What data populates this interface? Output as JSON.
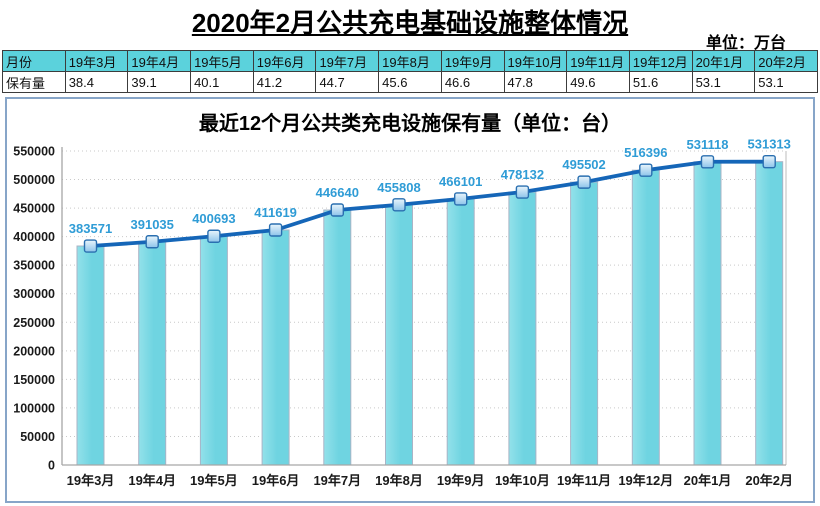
{
  "page": {
    "title": "2020年2月公共充电基础设施整体情况",
    "unit_label": "单位：万台"
  },
  "table": {
    "row_headers": [
      "月份",
      "保有量"
    ],
    "months": [
      "19年3月",
      "19年4月",
      "19年5月",
      "19年6月",
      "19年7月",
      "19年8月",
      "19年9月",
      "19年10月",
      "19年11月",
      "19年12月",
      "20年1月",
      "20年2月"
    ],
    "values": [
      "38.4",
      "39.1",
      "40.1",
      "41.2",
      "44.7",
      "45.6",
      "46.6",
      "47.8",
      "49.6",
      "51.6",
      "53.1",
      "53.1"
    ]
  },
  "chart_data": {
    "type": "bar",
    "line_overlay": true,
    "title": "最近12个月公共类充电设施保有量（单位：台）",
    "categories": [
      "19年3月",
      "19年4月",
      "19年5月",
      "19年6月",
      "19年7月",
      "19年8月",
      "19年9月",
      "19年10月",
      "19年11月",
      "19年12月",
      "20年1月",
      "20年2月"
    ],
    "values": [
      383571,
      391035,
      400693,
      411619,
      446640,
      455808,
      466101,
      478132,
      495502,
      516396,
      531118,
      531313
    ],
    "data_labels": [
      "383571",
      "391035",
      "400693",
      "411619",
      "446640",
      "455808",
      "466101",
      "478132",
      "495502",
      "516396",
      "531118",
      "531313"
    ],
    "xlabel": "",
    "ylabel": "",
    "ylim": [
      0,
      550000
    ],
    "ytick_step": 50000,
    "yticks": [
      0,
      50000,
      100000,
      150000,
      200000,
      250000,
      300000,
      350000,
      400000,
      450000,
      500000,
      550000
    ],
    "grid": true,
    "legend_position": "none",
    "colors": {
      "bar_fill": "#6fd4e1",
      "bar_fill_light": "#93e1ea",
      "bar_edge": "#a9b4c6",
      "line": "#1566b8",
      "marker_fill_top": "#eaf5fc",
      "marker_fill_bottom": "#8cc4ea",
      "marker_edge": "#2a6fb0",
      "data_label": "#2f9cd6",
      "grid_line": "#c9c9c9",
      "axis_line": "#a6a6a6",
      "plot_right_border": "#c8c8c8",
      "chart_border": "#87a5c8",
      "table_header_bg": "#5bd2dc",
      "tick_label": "#1a1a1a"
    }
  }
}
